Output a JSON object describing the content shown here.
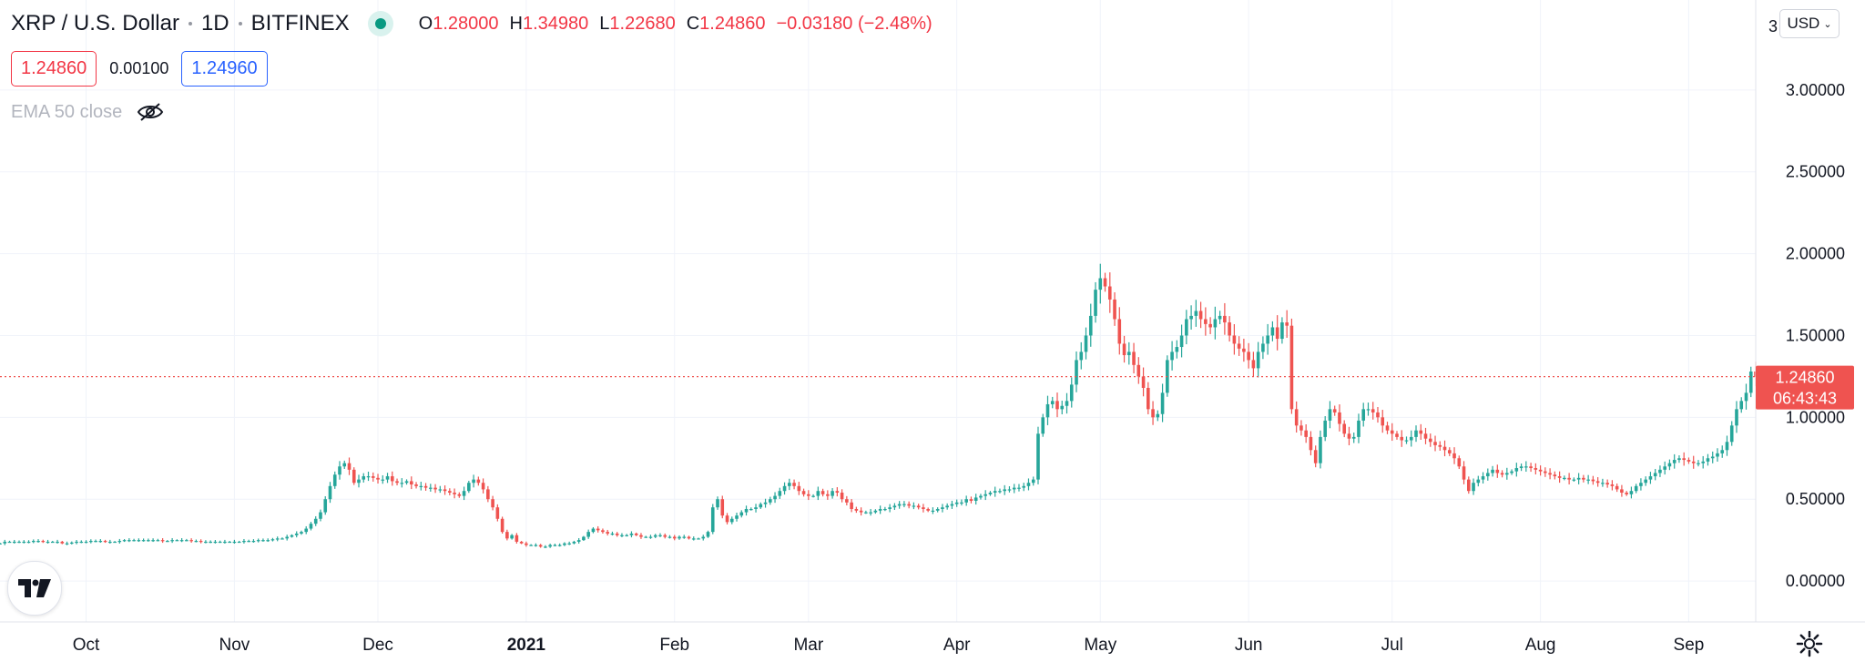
{
  "header": {
    "symbol_title": "XRP / U.S. Dollar",
    "interval": "1D",
    "exchange": "BITFINEX",
    "ohlc": {
      "open_label": "O",
      "open": "1.28000",
      "high_label": "H",
      "high": "1.34980",
      "low_label": "L",
      "low": "1.22680",
      "close_label": "C",
      "close": "1.24860",
      "change": "−0.03180 (−2.48%)"
    },
    "sell_price": "1.24860",
    "spread": "0.00100",
    "buy_price": "1.24960",
    "indicator_label": "EMA 50 close"
  },
  "currency_button": {
    "label": "USD",
    "top_tick_partial": "3"
  },
  "colors": {
    "up": "#26a69a",
    "down": "#ef5350",
    "grid": "#f0f3fa",
    "axis_text": "#131722"
  },
  "chart_data": {
    "type": "candlestick",
    "y_ticks": [
      "0.00000",
      "0.50000",
      "1.00000",
      "1.50000",
      "2.00000",
      "2.50000",
      "3.00000"
    ],
    "y_tick_values": [
      0,
      0.5,
      1.0,
      1.5,
      2.0,
      2.5,
      3.0
    ],
    "ylim": [
      -0.25,
      3.55
    ],
    "x_ticks": [
      "Oct",
      "Nov",
      "Dec",
      "2021",
      "Feb",
      "Mar",
      "Apr",
      "May",
      "Jun",
      "Jul",
      "Aug",
      "Sep"
    ],
    "x_range": [
      "2020-09-13",
      "2021-09-15"
    ],
    "x_tick_dates": [
      "2020-10-01",
      "2020-11-01",
      "2020-12-01",
      "2021-01-01",
      "2021-02-01",
      "2021-03-01",
      "2021-04-01",
      "2021-05-01",
      "2021-06-01",
      "2021-07-01",
      "2021-08-01",
      "2021-09-01"
    ],
    "first_candle_date": "2020-09-13",
    "last_price": "1.24860",
    "last_price_value": 1.2486,
    "countdown": "06:43:43",
    "close_series": [
      0.23,
      0.24,
      0.24,
      0.24,
      0.24,
      0.24,
      0.24,
      0.245,
      0.245,
      0.24,
      0.24,
      0.24,
      0.24,
      0.23,
      0.23,
      0.235,
      0.24,
      0.24,
      0.24,
      0.245,
      0.245,
      0.245,
      0.24,
      0.24,
      0.24,
      0.245,
      0.25,
      0.25,
      0.25,
      0.25,
      0.25,
      0.25,
      0.25,
      0.25,
      0.245,
      0.245,
      0.25,
      0.25,
      0.25,
      0.25,
      0.245,
      0.245,
      0.24,
      0.24,
      0.24,
      0.24,
      0.24,
      0.24,
      0.24,
      0.24,
      0.24,
      0.245,
      0.245,
      0.245,
      0.25,
      0.25,
      0.25,
      0.255,
      0.26,
      0.26,
      0.27,
      0.28,
      0.29,
      0.3,
      0.32,
      0.35,
      0.38,
      0.42,
      0.5,
      0.58,
      0.65,
      0.7,
      0.72,
      0.68,
      0.6,
      0.62,
      0.64,
      0.64,
      0.63,
      0.62,
      0.62,
      0.64,
      0.61,
      0.6,
      0.6,
      0.61,
      0.59,
      0.58,
      0.58,
      0.57,
      0.57,
      0.56,
      0.56,
      0.55,
      0.54,
      0.53,
      0.52,
      0.55,
      0.6,
      0.62,
      0.6,
      0.56,
      0.5,
      0.45,
      0.38,
      0.3,
      0.26,
      0.28,
      0.24,
      0.23,
      0.22,
      0.22,
      0.22,
      0.21,
      0.21,
      0.22,
      0.22,
      0.22,
      0.23,
      0.23,
      0.24,
      0.25,
      0.27,
      0.3,
      0.32,
      0.31,
      0.3,
      0.29,
      0.29,
      0.28,
      0.28,
      0.28,
      0.29,
      0.28,
      0.27,
      0.27,
      0.27,
      0.28,
      0.28,
      0.27,
      0.27,
      0.26,
      0.27,
      0.27,
      0.26,
      0.26,
      0.26,
      0.27,
      0.3,
      0.45,
      0.5,
      0.4,
      0.36,
      0.38,
      0.4,
      0.42,
      0.44,
      0.44,
      0.45,
      0.47,
      0.48,
      0.5,
      0.52,
      0.55,
      0.58,
      0.6,
      0.58,
      0.55,
      0.53,
      0.52,
      0.52,
      0.55,
      0.53,
      0.52,
      0.55,
      0.54,
      0.5,
      0.48,
      0.44,
      0.43,
      0.42,
      0.42,
      0.42,
      0.43,
      0.44,
      0.44,
      0.45,
      0.46,
      0.47,
      0.47,
      0.46,
      0.46,
      0.45,
      0.44,
      0.43,
      0.43,
      0.44,
      0.45,
      0.46,
      0.47,
      0.48,
      0.48,
      0.5,
      0.49,
      0.51,
      0.52,
      0.53,
      0.54,
      0.55,
      0.55,
      0.56,
      0.56,
      0.57,
      0.57,
      0.58,
      0.6,
      0.62,
      0.9,
      1.0,
      1.08,
      1.1,
      1.05,
      1.07,
      1.1,
      1.2,
      1.35,
      1.4,
      1.5,
      1.62,
      1.78,
      1.85,
      1.8,
      1.72,
      1.6,
      1.45,
      1.38,
      1.4,
      1.32,
      1.25,
      1.18,
      1.05,
      1.0,
      1.02,
      1.15,
      1.35,
      1.4,
      1.43,
      1.5,
      1.6,
      1.62,
      1.65,
      1.6,
      1.57,
      1.55,
      1.6,
      1.62,
      1.58,
      1.5,
      1.45,
      1.42,
      1.4,
      1.35,
      1.3,
      1.4,
      1.45,
      1.5,
      1.55,
      1.48,
      1.58,
      1.56,
      1.05,
      0.95,
      0.92,
      0.88,
      0.8,
      0.72,
      0.88,
      0.98,
      1.05,
      1.03,
      0.96,
      0.9,
      0.87,
      0.88,
      0.98,
      1.05,
      1.05,
      1.03,
      1.0,
      0.95,
      0.92,
      0.9,
      0.88,
      0.86,
      0.86,
      0.88,
      0.92,
      0.9,
      0.87,
      0.85,
      0.83,
      0.82,
      0.8,
      0.78,
      0.75,
      0.7,
      0.62,
      0.55,
      0.6,
      0.62,
      0.64,
      0.66,
      0.68,
      0.66,
      0.65,
      0.66,
      0.67,
      0.69,
      0.7,
      0.7,
      0.69,
      0.68,
      0.67,
      0.66,
      0.65,
      0.64,
      0.63,
      0.63,
      0.62,
      0.62,
      0.63,
      0.62,
      0.62,
      0.61,
      0.6,
      0.6,
      0.59,
      0.58,
      0.56,
      0.54,
      0.53,
      0.55,
      0.58,
      0.6,
      0.62,
      0.64,
      0.66,
      0.68,
      0.7,
      0.72,
      0.74,
      0.75,
      0.74,
      0.73,
      0.72,
      0.72,
      0.73,
      0.75,
      0.76,
      0.78,
      0.8,
      0.85,
      0.95,
      1.05,
      1.1,
      1.15,
      1.28,
      1.2486
    ]
  }
}
